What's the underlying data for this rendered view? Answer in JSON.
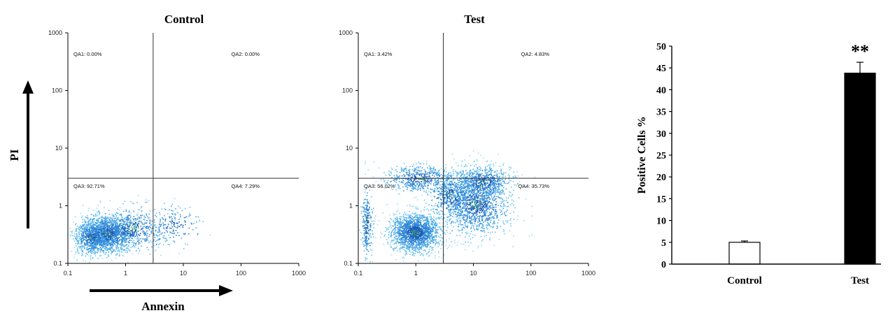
{
  "axis_labels": {
    "y": "PI",
    "x": "Annexin"
  },
  "chart_data": [
    {
      "type": "scatter",
      "title": "Control",
      "xlabel": "Annexin",
      "ylabel": "PI",
      "x_scale": "log",
      "y_scale": "log",
      "xlim": [
        0.1,
        1000
      ],
      "ylim": [
        0.1,
        1000
      ],
      "x_ticks": [
        "0.1",
        "1",
        "10",
        "100",
        "1000"
      ],
      "y_ticks": [
        "0.1",
        "1",
        "10",
        "100",
        "1000"
      ],
      "gate_x": 3,
      "gate_y": 3,
      "quadrants": [
        {
          "label": "QA1: 0.00%",
          "position": "top-left"
        },
        {
          "label": "QA2: 0.00%",
          "position": "top-right"
        },
        {
          "label": "QA3: 92.71%",
          "position": "bottom-left"
        },
        {
          "label": "QA4: 7.29%",
          "position": "bottom-right"
        }
      ],
      "clusters": [
        {
          "x": 0.45,
          "y": 0.33,
          "sx_dec": 0.25,
          "sy_dec": 0.17,
          "n": 1500
        },
        {
          "x": 0.25,
          "y": 0.28,
          "sx_dec": 0.15,
          "sy_dec": 0.15,
          "n": 400
        },
        {
          "x": 1.3,
          "y": 0.4,
          "sx_dec": 0.32,
          "sy_dec": 0.2,
          "n": 450
        },
        {
          "x": 7,
          "y": 0.45,
          "sx_dec": 0.25,
          "sy_dec": 0.17,
          "n": 160
        }
      ],
      "colors": [
        "#1e5eb8",
        "#2f86d6",
        "#46a6e6",
        "#6cc3ef",
        "#9dd9f5"
      ],
      "core_color": "#2e9e6a"
    },
    {
      "type": "scatter",
      "title": "Test",
      "x_scale": "log",
      "y_scale": "log",
      "xlim": [
        0.1,
        1000
      ],
      "ylim": [
        0.1,
        1000
      ],
      "x_ticks": [
        "0.1",
        "1",
        "10",
        "100",
        "1000"
      ],
      "y_ticks": [
        "0.1",
        "1",
        "10",
        "100",
        "1000"
      ],
      "gate_x": 3,
      "gate_y": 3,
      "quadrants": [
        {
          "label": "QA1: 3.42%",
          "position": "top-left"
        },
        {
          "label": "QA2: 4.83%",
          "position": "top-right"
        },
        {
          "label": "QA3: 56.02%",
          "position": "bottom-left"
        },
        {
          "label": "QA4: 35.73%",
          "position": "bottom-right"
        }
      ],
      "clusters": [
        {
          "x": 0.95,
          "y": 0.35,
          "sx_dec": 0.22,
          "sy_dec": 0.17,
          "n": 1600
        },
        {
          "x": 11,
          "y": 1.1,
          "sx_dec": 0.3,
          "sy_dec": 0.28,
          "n": 1200
        },
        {
          "x": 14,
          "y": 2.6,
          "sx_dec": 0.25,
          "sy_dec": 0.15,
          "n": 600
        },
        {
          "x": 1.2,
          "y": 3.0,
          "sx_dec": 0.3,
          "sy_dec": 0.12,
          "n": 500
        },
        {
          "x": 0.14,
          "y": 0.5,
          "sx_dec": 0.05,
          "sy_dec": 0.3,
          "n": 250
        },
        {
          "x": 4,
          "y": 1.5,
          "sx_dec": 0.2,
          "sy_dec": 0.2,
          "n": 400
        }
      ],
      "colors": [
        "#1e5eb8",
        "#2f86d6",
        "#46a6e6",
        "#6cc3ef",
        "#9dd9f5"
      ],
      "core_color": "#2e9e6a"
    },
    {
      "type": "bar",
      "categories": [
        "Control",
        "Test"
      ],
      "values": [
        5.0,
        43.8
      ],
      "errors": [
        0.3,
        2.5
      ],
      "ylabel": "Positive Cells %",
      "ylim": [
        0,
        50
      ],
      "y_ticks": [
        "0",
        "5",
        "10",
        "15",
        "20",
        "25",
        "30",
        "35",
        "40",
        "45",
        "50"
      ],
      "annotations": [
        {
          "category": "Test",
          "text": "**"
        }
      ],
      "bar_colors": [
        "#ffffff",
        "#000000"
      ]
    }
  ]
}
